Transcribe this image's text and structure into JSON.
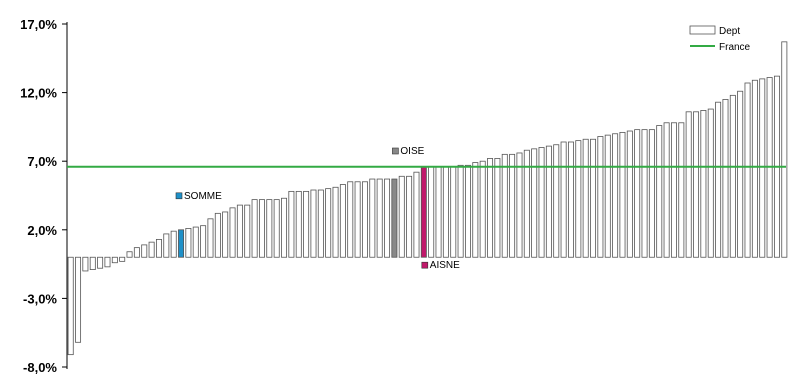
{
  "chart_data": {
    "type": "bar",
    "yformat": "percent_comma_1",
    "ylim": [
      -8.0,
      17.0
    ],
    "yticks": [
      17.0,
      12.0,
      7.0,
      2.0,
      -3.0,
      -8.0
    ],
    "ytick_labels": [
      "17,0%",
      "12,0%",
      "7,0%",
      "2,0%",
      "-3,0%",
      "-8,0%"
    ],
    "legend_position": "top-right",
    "series": [
      {
        "name": "Dept",
        "colors": {
          "fill": "#ffffff",
          "stroke": "#555555"
        },
        "values": [
          -7.1,
          -6.2,
          -1.0,
          -0.9,
          -0.8,
          -0.7,
          -0.4,
          -0.3,
          0.4,
          0.7,
          0.9,
          1.1,
          1.3,
          1.7,
          1.9,
          2.0,
          2.1,
          2.2,
          2.3,
          2.8,
          3.2,
          3.3,
          3.6,
          3.8,
          3.8,
          4.2,
          4.2,
          4.2,
          4.2,
          4.3,
          4.8,
          4.8,
          4.8,
          4.9,
          4.9,
          5.0,
          5.1,
          5.3,
          5.5,
          5.5,
          5.5,
          5.7,
          5.7,
          5.7,
          5.7,
          5.9,
          5.9,
          6.2,
          6.6,
          6.6,
          6.6,
          6.6,
          6.6,
          6.7,
          6.7,
          6.9,
          7.0,
          7.2,
          7.2,
          7.5,
          7.5,
          7.6,
          7.8,
          7.9,
          8.0,
          8.1,
          8.2,
          8.4,
          8.4,
          8.5,
          8.6,
          8.6,
          8.8,
          8.9,
          9.0,
          9.1,
          9.2,
          9.3,
          9.3,
          9.3,
          9.6,
          9.8,
          9.8,
          9.8,
          10.6,
          10.6,
          10.7,
          10.8,
          11.3,
          11.5,
          11.8,
          12.1,
          12.7,
          12.9,
          13.0,
          13.1,
          13.2,
          15.7
        ]
      },
      {
        "name": "France",
        "value": 6.6,
        "color": "#33aa44"
      }
    ],
    "highlights": [
      {
        "label": "SOMME",
        "index": 15,
        "color": "#1e90c8",
        "label_side": "above-left"
      },
      {
        "label": "OISE",
        "index": 44,
        "color": "#888888",
        "label_side": "above"
      },
      {
        "label": "AISNE",
        "index": 48,
        "color": "#c0186a",
        "label_side": "below"
      }
    ]
  }
}
